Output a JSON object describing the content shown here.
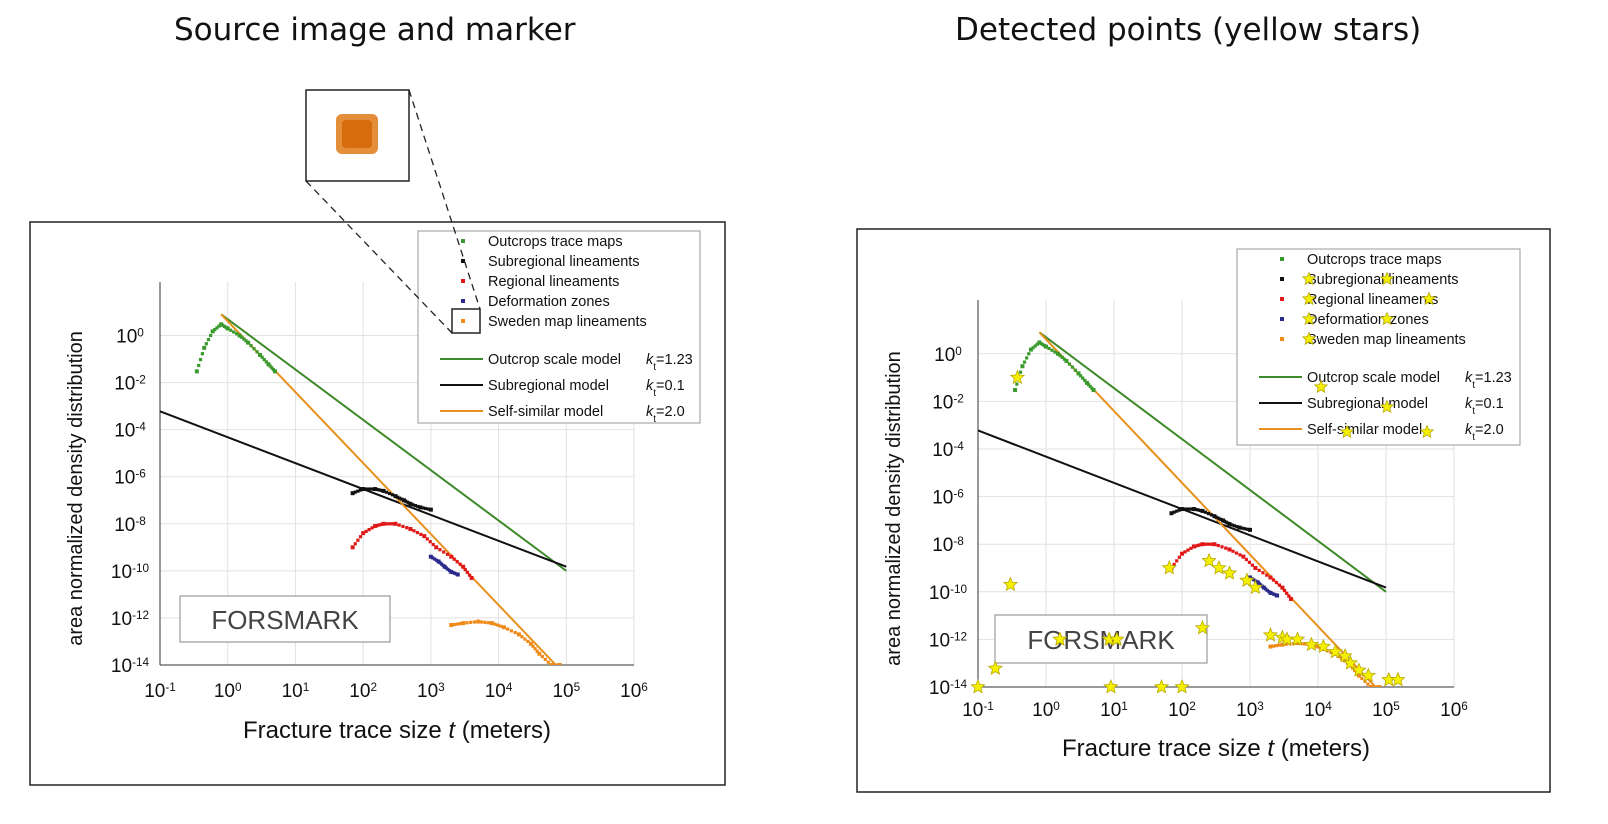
{
  "left_title": "Source image and marker",
  "right_title": "Detected points (yellow stars)",
  "chart_data": [
    {
      "type": "scatter",
      "panel": "source",
      "xlabel": "Fracture trace size t (meters)",
      "ylabel": "area normalized density distribution",
      "xscale": "log",
      "yscale": "log",
      "xlim": [
        0.1,
        1000000
      ],
      "ylim": [
        1e-14,
        10
      ],
      "x_ticks": [
        "10-1",
        "100",
        "101",
        "102",
        "103",
        "104",
        "105",
        "106"
      ],
      "y_ticks": [
        "10-14",
        "10-12",
        "10-10",
        "10-8",
        "10-6",
        "10-4",
        "10-2",
        "100"
      ],
      "grid": true,
      "legend_position": "top-right",
      "annotation": "FORSMARK",
      "marker_inset": "orange square marker (zoomed)",
      "series": [
        {
          "name": "Outcrops trace maps",
          "kind": "points",
          "color": "#3a9a2e",
          "x": [
            0.35,
            0.45,
            0.6,
            0.8,
            1.0,
            1.5,
            2.0,
            3.0,
            4.0,
            5.0
          ],
          "y": [
            0.03,
            0.3,
            1.5,
            3.0,
            2.0,
            1.0,
            0.5,
            0.15,
            0.06,
            0.03
          ]
        },
        {
          "name": "Subregional lineaments",
          "kind": "points",
          "color": "#111111",
          "x": [
            70,
            100,
            150,
            200,
            300,
            400,
            500,
            700,
            1000
          ],
          "y": [
            2e-07,
            3e-07,
            3e-07,
            2.5e-07,
            1.5e-07,
            1e-07,
            7e-08,
            5e-08,
            4e-08
          ]
        },
        {
          "name": "Regional lineaments",
          "kind": "points",
          "color": "#e01818",
          "x": [
            70,
            100,
            150,
            200,
            300,
            500,
            800,
            1200,
            2000,
            3000,
            4000
          ],
          "y": [
            1e-09,
            4e-09,
            8e-09,
            1e-08,
            1e-08,
            6e-09,
            3e-09,
            1e-09,
            4e-10,
            1.5e-10,
            5e-11
          ]
        },
        {
          "name": "Deformation zones",
          "kind": "points",
          "color": "#2a2a8a",
          "x": [
            1000,
            1300,
            1600,
            2000,
            2500
          ],
          "y": [
            4e-10,
            2.5e-10,
            1.5e-10,
            9e-11,
            7e-11
          ]
        },
        {
          "name": "Sweden map lineaments",
          "kind": "points",
          "color": "#f08a18",
          "x": [
            2000,
            3000,
            5000,
            8000,
            12000,
            20000,
            30000,
            40000,
            60000,
            80000
          ],
          "y": [
            5e-13,
            6e-13,
            7e-13,
            6e-13,
            4e-13,
            2e-13,
            8e-14,
            3e-14,
            1e-14,
            1e-14
          ]
        },
        {
          "name": "Outcrop scale model",
          "kind": "line",
          "color": "#3d8a2a",
          "x": [
            0.8,
            100000
          ],
          "y": [
            8,
            1e-10
          ]
        },
        {
          "name": "Subregional model",
          "kind": "line",
          "color": "#111111",
          "x": [
            0.1,
            100000
          ],
          "y": [
            0.0006,
            1.5e-10
          ]
        },
        {
          "name": "Self-similar model",
          "kind": "line",
          "color": "#e8901c",
          "x": [
            0.8,
            70000
          ],
          "y": [
            8,
            1e-14
          ]
        }
      ],
      "legend_extra": {
        "outcrop": "kt=1.23",
        "subregional": "kt=0.1",
        "selfsimilar": "kt=2.0"
      }
    },
    {
      "type": "scatter",
      "panel": "detected",
      "xlabel": "Fracture trace size t (meters)",
      "ylabel": "area normalized density distribution",
      "xscale": "log",
      "yscale": "log",
      "xlim": [
        0.1,
        1000000
      ],
      "ylim": [
        1e-14,
        10
      ],
      "grid": true,
      "legend_position": "top-right",
      "annotation": "FORSMARK",
      "series": [
        {
          "name": "Outcrops trace maps",
          "kind": "points",
          "color": "#3a9a2e",
          "x": [
            0.35,
            0.45,
            0.6,
            0.8,
            1.0,
            1.5,
            2.0,
            3.0,
            4.0,
            5.0
          ],
          "y": [
            0.03,
            0.3,
            1.5,
            3.0,
            2.0,
            1.0,
            0.5,
            0.15,
            0.06,
            0.03
          ]
        },
        {
          "name": "Subregional lineaments",
          "kind": "points",
          "color": "#111111",
          "x": [
            70,
            100,
            150,
            200,
            300,
            400,
            500,
            700,
            1000
          ],
          "y": [
            2e-07,
            3e-07,
            3e-07,
            2.5e-07,
            1.5e-07,
            1e-07,
            7e-08,
            5e-08,
            4e-08
          ]
        },
        {
          "name": "Regional lineaments",
          "kind": "points",
          "color": "#e01818",
          "x": [
            70,
            100,
            150,
            200,
            300,
            500,
            800,
            1200,
            2000,
            3000,
            4000
          ],
          "y": [
            1e-09,
            4e-09,
            8e-09,
            1e-08,
            1e-08,
            6e-09,
            3e-09,
            1e-09,
            4e-10,
            1.5e-10,
            5e-11
          ]
        },
        {
          "name": "Deformation zones",
          "kind": "points",
          "color": "#2a2a8a",
          "x": [
            1000,
            1300,
            1600,
            2000,
            2500
          ],
          "y": [
            4e-10,
            2.5e-10,
            1.5e-10,
            9e-11,
            7e-11
          ]
        },
        {
          "name": "Sweden map lineaments",
          "kind": "points",
          "color": "#f08a18",
          "x": [
            2000,
            3000,
            5000,
            8000,
            12000,
            20000,
            30000,
            40000,
            60000,
            80000
          ],
          "y": [
            5e-13,
            6e-13,
            7e-13,
            6e-13,
            4e-13,
            2e-13,
            8e-14,
            3e-14,
            1e-14,
            1e-14
          ]
        },
        {
          "name": "Outcrop scale model",
          "kind": "line",
          "color": "#3d8a2a",
          "x": [
            0.8,
            100000
          ],
          "y": [
            8,
            1e-10
          ]
        },
        {
          "name": "Subregional model",
          "kind": "line",
          "color": "#111111",
          "x": [
            0.1,
            100000
          ],
          "y": [
            0.0006,
            1.5e-10
          ]
        },
        {
          "name": "Self-similar model",
          "kind": "line",
          "color": "#e8901c",
          "x": [
            0.8,
            70000
          ],
          "y": [
            8,
            1e-14
          ]
        }
      ],
      "detected_points": {
        "color": "#f5f000",
        "x": [
          0.1,
          0.18,
          0.3,
          0.38,
          1.6,
          8.5,
          9,
          11,
          50,
          65,
          100,
          200,
          250,
          350,
          500,
          900,
          1200,
          2000,
          3000,
          3500,
          5000,
          8000,
          12000,
          18000,
          25000,
          30000,
          40000,
          55000,
          110000,
          150000
        ],
        "y": [
          1e-14,
          6e-14,
          2e-10,
          0.1,
          1e-12,
          1e-12,
          1e-14,
          1e-12,
          1e-14,
          1e-09,
          1e-14,
          3e-12,
          2e-09,
          1e-09,
          6e-10,
          3e-10,
          1.5e-10,
          1.5e-12,
          1.2e-12,
          1e-12,
          1e-12,
          6e-13,
          5e-13,
          3e-13,
          2e-13,
          1e-13,
          5e-14,
          3e-14,
          2e-14,
          2e-14
        ]
      }
    }
  ]
}
